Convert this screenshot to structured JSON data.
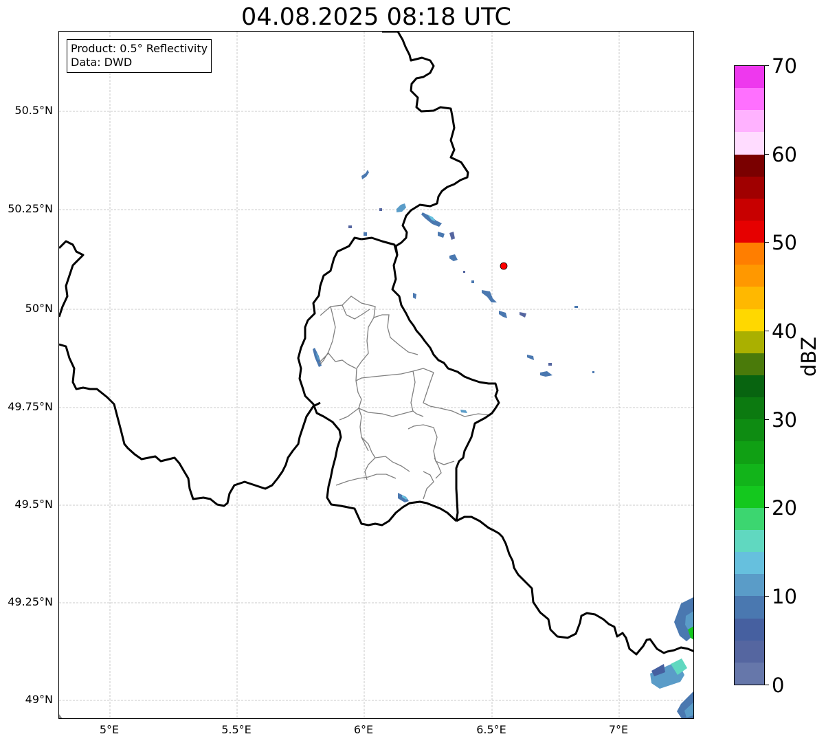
{
  "title": "04.08.2025 08:18 UTC",
  "info_box": {
    "product": "Product: 0.5° Reflectivity",
    "data": "Data: DWD"
  },
  "map": {
    "lat_labels": [
      "50.5°N",
      "50.25°N",
      "50°N",
      "49.75°N",
      "49.5°N",
      "49.25°N",
      "49°N"
    ],
    "lon_labels": [
      "5°E",
      "5.5°E",
      "6°E",
      "6.5°E",
      "7°E"
    ],
    "site_marker": {
      "lon": 6.55,
      "lat": 50.11,
      "color": "#ff0000"
    }
  },
  "colorbar": {
    "label": "dBZ",
    "ticks": [
      "0",
      "10",
      "20",
      "30",
      "40",
      "50",
      "60",
      "70"
    ],
    "colors": [
      "#6677aa",
      "#5566a0",
      "#4660a0",
      "#4a78b0",
      "#5a9cc8",
      "#66c0de",
      "#60d8c0",
      "#3cd670",
      "#14c81e",
      "#12b41a",
      "#10a014",
      "#0e8c12",
      "#0c7a10",
      "#086410",
      "#4a7a0a",
      "#aab000",
      "#ffd800",
      "#ffb800",
      "#ff9800",
      "#ff7e00",
      "#e60000",
      "#c80000",
      "#a00000",
      "#7a0000",
      "#ffdcff",
      "#ffb2ff",
      "#ff70ff",
      "#ee38ee"
    ]
  }
}
